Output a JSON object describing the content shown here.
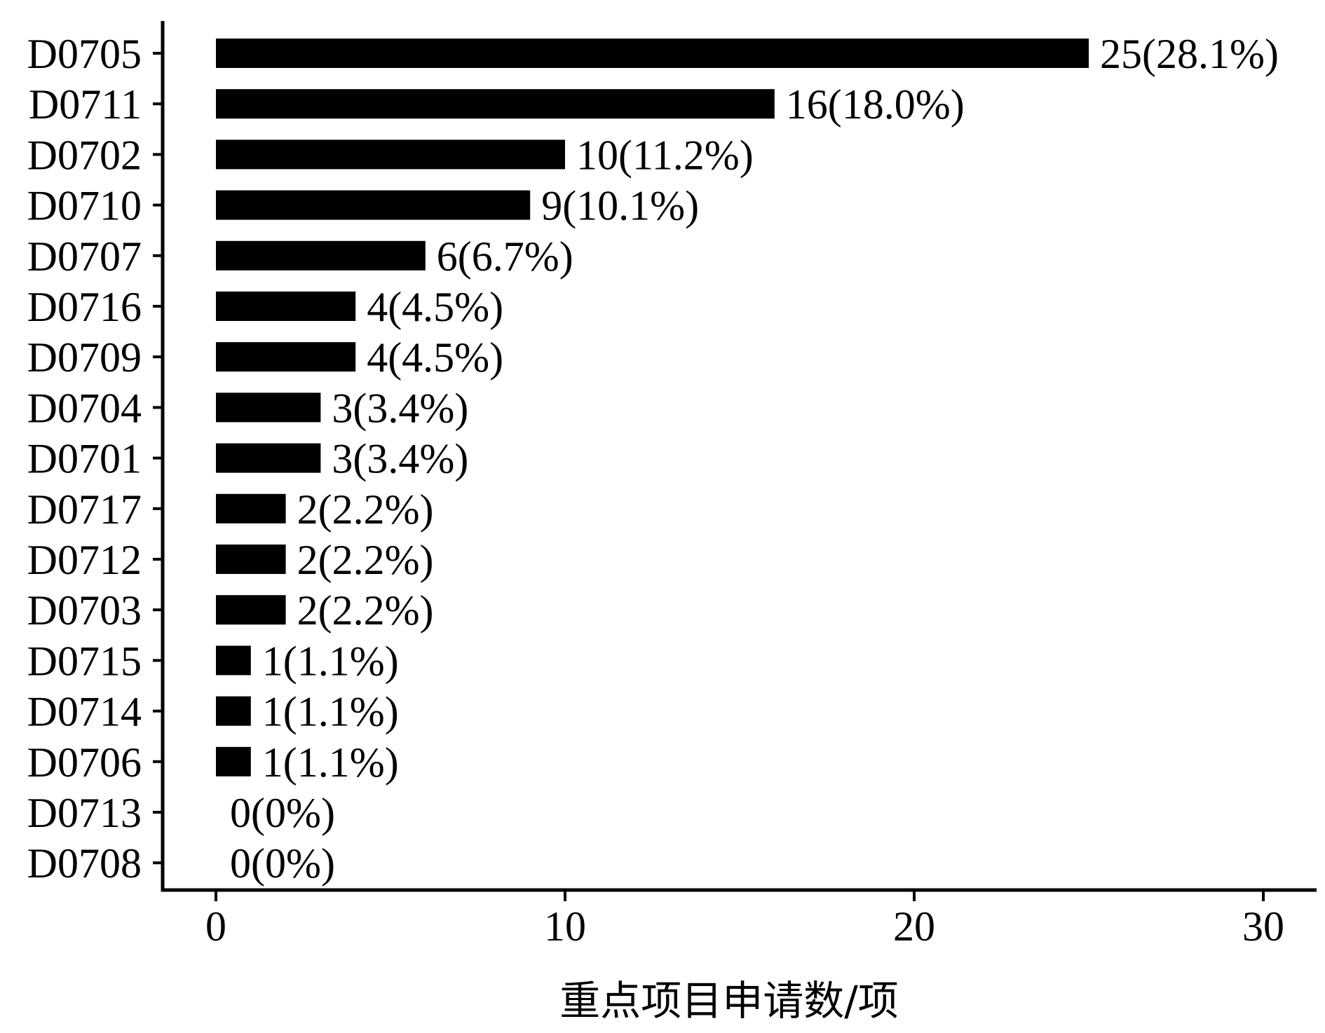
{
  "chart_data": {
    "type": "bar",
    "orientation": "horizontal",
    "categories": [
      "D0705",
      "D0711",
      "D0702",
      "D0710",
      "D0707",
      "D0716",
      "D0709",
      "D0704",
      "D0701",
      "D0717",
      "D0712",
      "D0703",
      "D0715",
      "D0714",
      "D0706",
      "D0713",
      "D0708"
    ],
    "values": [
      25,
      16,
      10,
      9,
      6,
      4,
      4,
      3,
      3,
      2,
      2,
      2,
      1,
      1,
      1,
      0,
      0
    ],
    "data_labels": [
      "25(28.1%)",
      "16(18.0%)",
      "10(11.2%)",
      "9(10.1%)",
      "6(6.7%)",
      "4(4.5%)",
      "4(4.5%)",
      "3(3.4%)",
      "3(3.4%)",
      "2(2.2%)",
      "2(2.2%)",
      "2(2.2%)",
      "1(1.1%)",
      "1(1.1%)",
      "1(1.1%)",
      "0(0%)",
      "0(0%)"
    ],
    "xlabel": "重点项目申请数/项",
    "ylabel": "",
    "xlim": [
      0,
      30
    ],
    "xticks": [
      0,
      10,
      20,
      30
    ],
    "xtick_labels": [
      "0",
      "10",
      "20",
      "30"
    ],
    "bar_color": "#000000",
    "grid": false,
    "legend": "none"
  }
}
